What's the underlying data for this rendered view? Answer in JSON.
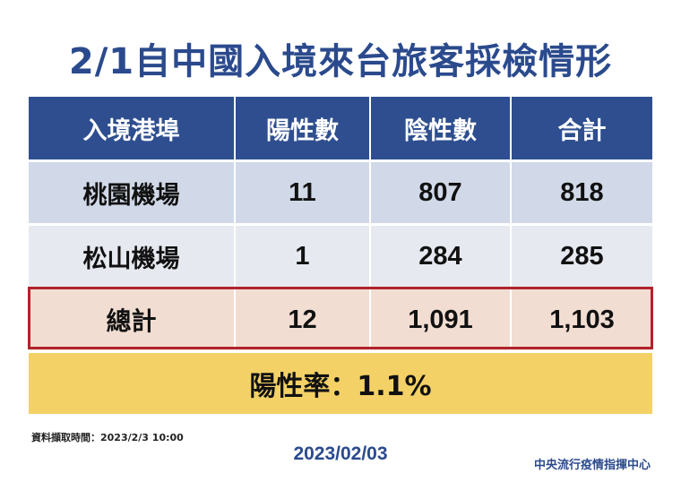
{
  "title": "2/1自中國入境來台旅客採檢情形",
  "table": {
    "headers": [
      "入境港埠",
      "陽性數",
      "陰性數",
      "合計"
    ],
    "rows": [
      {
        "port": "桃園機場",
        "positive": "11",
        "negative": "807",
        "total": "818"
      },
      {
        "port": "松山機場",
        "positive": "1",
        "negative": "284",
        "total": "285"
      }
    ],
    "total_row": {
      "label": "總計",
      "positive": "12",
      "negative": "1,091",
      "total": "1,103"
    }
  },
  "positivity_rate": "陽性率：1.1%",
  "source_note": "資料擷取時間：2023/2/3 10:00",
  "date": "2023/02/03",
  "organization": "中央流行疫情指揮中心",
  "colors": {
    "title_blue": "#2b4a8d",
    "header_blue": "#2e4e8f",
    "row_light_blue": "#d1d9e8",
    "row_light_gray": "#e6e9f0",
    "total_row_peach": "#f2ddd2",
    "total_row_border": "#b0232c",
    "rate_bar_yellow": "#f3d166"
  }
}
